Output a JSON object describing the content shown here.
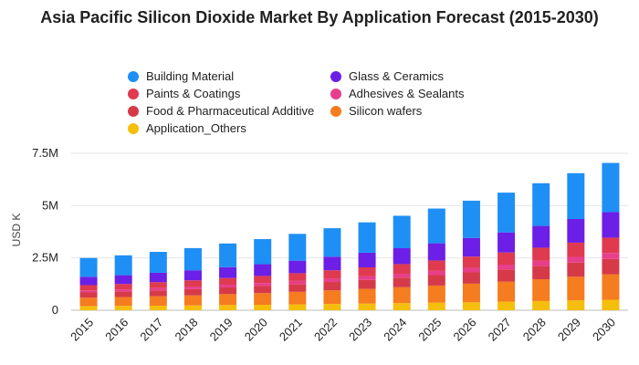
{
  "chart_data": {
    "type": "bar",
    "stacked": true,
    "title": "Asia Pacific Silicon Dioxide Market By Application Forecast (2015-2030)",
    "xlabel": "",
    "ylabel": "USD K",
    "ylim": [
      0,
      7500000
    ],
    "yticks": [
      0,
      2500000,
      5000000,
      7500000
    ],
    "ytick_labels": [
      "0",
      "2.5M",
      "5M",
      "7.5M"
    ],
    "grid": "horizontal",
    "legend_position": "top",
    "categories": [
      "2015",
      "2016",
      "2017",
      "2018",
      "2019",
      "2020",
      "2021",
      "2022",
      "2023",
      "2024",
      "2025",
      "2026",
      "2027",
      "2028",
      "2029",
      "2030"
    ],
    "series": [
      {
        "name": "Application_Others",
        "color": "#f5be0b",
        "values": [
          200000,
          210000,
          220000,
          230000,
          250000,
          260000,
          280000,
          300000,
          320000,
          340000,
          360000,
          380000,
          410000,
          440000,
          470000,
          500000
        ]
      },
      {
        "name": "Silicon wafers",
        "color": "#f57c1f",
        "values": [
          400000,
          420000,
          450000,
          480000,
          520000,
          560000,
          600000,
          650000,
          700000,
          760000,
          820000,
          890000,
          960000,
          1040000,
          1130000,
          1220000
        ]
      },
      {
        "name": "Food & Pharmaceutical Additive",
        "color": "#d63a48",
        "values": [
          250000,
          260000,
          280000,
          300000,
          320000,
          340000,
          370000,
          400000,
          430000,
          460000,
          500000,
          540000,
          580000,
          630000,
          680000,
          730000
        ]
      },
      {
        "name": "Adhesives & Sealants",
        "color": "#e83e8c",
        "values": [
          100000,
          105000,
          110000,
          120000,
          130000,
          140000,
          150000,
          160000,
          170000,
          185000,
          200000,
          215000,
          230000,
          250000,
          270000,
          290000
        ]
      },
      {
        "name": "Paints & Coatings",
        "color": "#df3a4f",
        "values": [
          250000,
          260000,
          280000,
          300000,
          320000,
          340000,
          370000,
          400000,
          430000,
          460000,
          500000,
          540000,
          580000,
          630000,
          680000,
          730000
        ]
      },
      {
        "name": "Glass & Ceramics",
        "color": "#6c1fe6",
        "values": [
          400000,
          420000,
          450000,
          480000,
          520000,
          560000,
          600000,
          650000,
          700000,
          760000,
          820000,
          890000,
          960000,
          1040000,
          1130000,
          1220000
        ]
      },
      {
        "name": "Building Material",
        "color": "#1e8ff5",
        "values": [
          900000,
          950000,
          1000000,
          1060000,
          1130000,
          1200000,
          1280000,
          1360000,
          1450000,
          1550000,
          1660000,
          1780000,
          1900000,
          2040000,
          2190000,
          2350000
        ]
      }
    ]
  },
  "legend": {
    "items": [
      {
        "label": "Building Material",
        "color": "#1e8ff5"
      },
      {
        "label": "Paints & Coatings",
        "color": "#df3a4f"
      },
      {
        "label": "Food & Pharmaceutical Additive",
        "color": "#d63a48"
      },
      {
        "label": "Application_Others",
        "color": "#f5be0b"
      },
      {
        "label": "Glass & Ceramics",
        "color": "#6c1fe6"
      },
      {
        "label": "Adhesives & Sealants",
        "color": "#e83e8c"
      },
      {
        "label": "Silicon wafers",
        "color": "#f57c1f"
      }
    ]
  }
}
